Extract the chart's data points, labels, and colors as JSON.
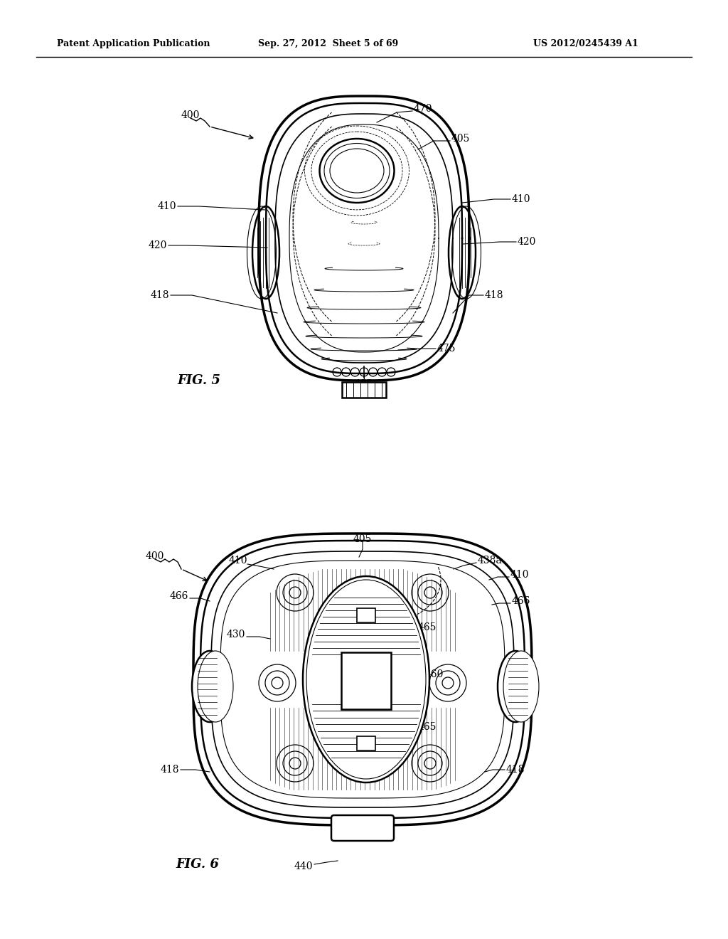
{
  "header_left": "Patent Application Publication",
  "header_center": "Sep. 27, 2012  Sheet 5 of 69",
  "header_right": "US 2012/0245439 A1",
  "fig5_label": "FIG. 5",
  "fig6_label": "FIG. 6",
  "bg_color": "#ffffff",
  "line_color": "#000000"
}
